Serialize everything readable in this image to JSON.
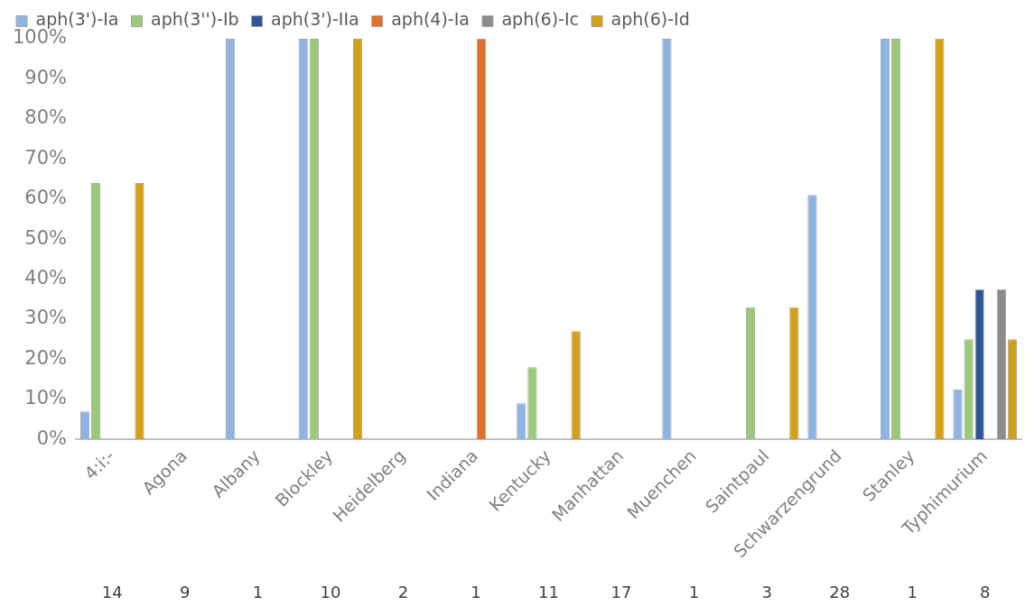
{
  "chart_data": {
    "type": "bar",
    "categories": [
      "4:i:-",
      "Agona",
      "Albany",
      "Blockley",
      "Heidelberg",
      "Indiana",
      "Kentucky",
      "Manhattan",
      "Muenchen",
      "Saintpaul",
      "Schwarzengrund",
      "Stanley",
      "Typhimurium"
    ],
    "series": [
      {
        "name": "aph(3')-Ia",
        "color": "#8db4e2",
        "values": [
          7,
          0,
          100,
          100,
          0,
          0,
          9,
          0,
          100,
          0,
          61,
          100,
          12.5
        ]
      },
      {
        "name": "aph(3'')-Ib",
        "color": "#9bc97a",
        "values": [
          64,
          0,
          0,
          100,
          0,
          0,
          18,
          0,
          0,
          33,
          0,
          100,
          25
        ]
      },
      {
        "name": "aph(3')-IIa",
        "color": "#2f5597",
        "values": [
          0,
          0,
          0,
          0,
          0,
          0,
          0,
          0,
          0,
          0,
          0,
          0,
          37.5
        ]
      },
      {
        "name": "aph(4)-Ia",
        "color": "#e0702c",
        "values": [
          0,
          0,
          0,
          0,
          0,
          100,
          0,
          0,
          0,
          0,
          0,
          0,
          0
        ]
      },
      {
        "name": "aph(6)-Ic",
        "color": "#8c8c8c",
        "values": [
          0,
          0,
          0,
          0,
          0,
          0,
          0,
          0,
          0,
          0,
          0,
          0,
          37.5
        ]
      },
      {
        "name": "aph(6)-Id",
        "color": "#d4a017",
        "values": [
          64,
          0,
          0,
          100,
          0,
          0,
          27,
          0,
          0,
          33,
          0,
          100,
          25
        ]
      }
    ],
    "ylim": [
      0,
      100
    ],
    "yticks": [
      {
        "value": 0,
        "label": "0%"
      },
      {
        "value": 10,
        "label": "10%"
      },
      {
        "value": 20,
        "label": "20%"
      },
      {
        "value": 30,
        "label": "30%"
      },
      {
        "value": 40,
        "label": "40%"
      },
      {
        "value": 50,
        "label": "50%"
      },
      {
        "value": 60,
        "label": "60%"
      },
      {
        "value": 70,
        "label": "70%"
      },
      {
        "value": 80,
        "label": "80%"
      },
      {
        "value": 90,
        "label": "90%"
      },
      {
        "value": 100,
        "label": "100%"
      }
    ],
    "grid": false,
    "legend": "top",
    "annotations": [
      "14",
      "9",
      "1",
      "10",
      "2",
      "1",
      "11",
      "17",
      "1",
      "3",
      "28",
      "1",
      "8"
    ]
  }
}
